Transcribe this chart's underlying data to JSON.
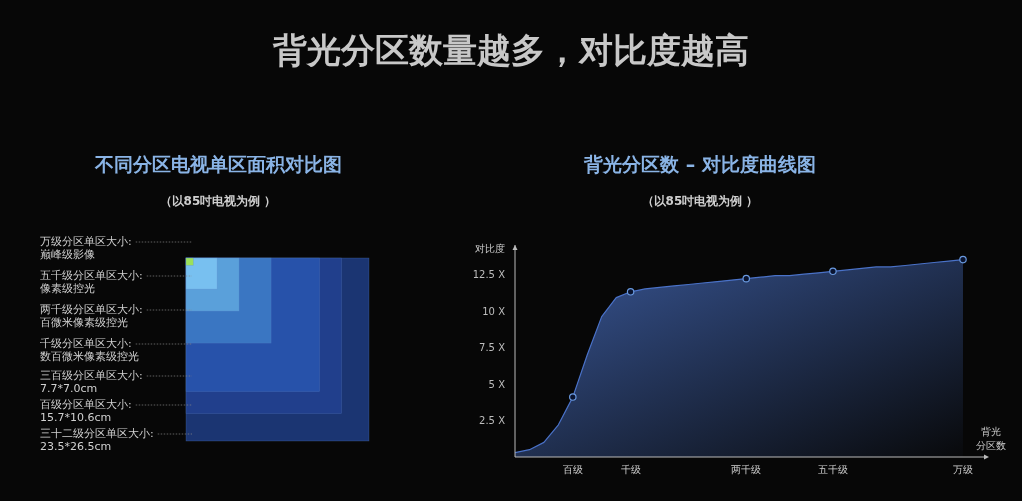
{
  "chart_data": [
    {
      "type": "other",
      "title": "不同分区电视单区面积对比图",
      "subtitle": "（以85吋电视为例 ）",
      "annotations": [
        "背光分区数量越多，对比度越高",
        "万级分区单区大小:\n巅峰级影像",
        "五千级分区单区大小:\n像素级控光",
        "两千级分区单区大小:\n百微米像素级控光",
        "千级分区单区大小:\n数百微米像素级控光",
        "三百级分区单区大小:\n7.7*7.0cm",
        "百级分区单区大小:\n15.7*10.6cm",
        "三十二级分区单区大小:\n23.5*26.5cm"
      ]
    },
    {
      "type": "area",
      "title": "背光分区数 – 对比度曲线图",
      "subtitle": "（以85吋电视为例 ）",
      "ylabel": "对比度",
      "xlabel": "背光分区数",
      "categories": [
        null,
        null,
        null,
        null,
        "百级",
        null,
        null,
        null,
        "千级",
        null,
        null,
        null,
        null,
        null,
        null,
        null,
        "两千级",
        null,
        null,
        null,
        null,
        null,
        "五千级",
        null,
        null,
        null,
        null,
        null,
        null,
        null,
        null,
        "万级"
      ],
      "series": [
        {
          "type": "scatter",
          "color": "#6a9ae0",
          "x": [
            "百级",
            "千级",
            "两千级",
            "五千级",
            "万级"
          ],
          "values": [
            4.1,
            11.3,
            12.2,
            12.7,
            13.5
          ],
          "marker": "circle"
        },
        {
          "color": "#4a72c8",
          "values": [
            0.3,
            0.5,
            1.0,
            2.2,
            4.1,
            7.0,
            9.6,
            10.9,
            11.3,
            11.5,
            11.6,
            11.7,
            11.8,
            11.9,
            12.0,
            12.1,
            12.2,
            12.3,
            12.4,
            12.4,
            12.5,
            12.6,
            12.7,
            12.8,
            12.9,
            13.0,
            13.0,
            13.1,
            13.2,
            13.3,
            13.4,
            13.5
          ]
        }
      ],
      "ylim": [
        0,
        14.5
      ],
      "yticks": [
        {
          "value": 2.5,
          "label": "2.5 X"
        },
        {
          "value": 5,
          "label": "5 X"
        },
        {
          "value": 7.5,
          "label": "7.5 X"
        },
        {
          "value": 10,
          "label": "10 X"
        },
        {
          "value": 12.5,
          "label": "12.5 X"
        }
      ],
      "grid": false
    }
  ]
}
